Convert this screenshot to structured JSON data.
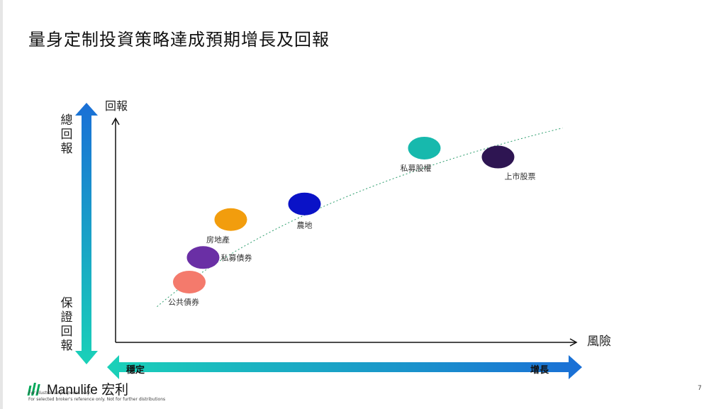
{
  "slide": {
    "title": "量身定制投資策略達成預期增長及回報",
    "page_number": "7"
  },
  "left_scale": {
    "top_label": "總回報",
    "bottom_label": "保證回報"
  },
  "bottom_scale": {
    "left_label": "穩定",
    "right_label": "增長"
  },
  "chart_data": {
    "type": "scatter",
    "title": "",
    "xlabel": "風險",
    "ylabel": "回報",
    "xlim": [
      0,
      100
    ],
    "ylim": [
      0,
      100
    ],
    "grid": false,
    "trendline": {
      "style": "dotted",
      "color": "#2e9e6e",
      "x": [
        9,
        97
      ],
      "y": [
        16,
        96
      ]
    },
    "series": [
      {
        "label": "公共債券",
        "x": 16,
        "y": 27,
        "color": "#f47a6c"
      },
      {
        "label": "私募債券",
        "x": 19,
        "y": 38,
        "color": "#6a2fa5"
      },
      {
        "label": "房地產",
        "x": 25,
        "y": 55,
        "color": "#f29d0d"
      },
      {
        "label": "農地",
        "x": 41,
        "y": 62,
        "color": "#0a12c7"
      },
      {
        "label": "私募股權",
        "x": 67,
        "y": 87,
        "color": "#17b9ad"
      },
      {
        "label": "上市股票",
        "x": 83,
        "y": 83,
        "color": "#2e1552"
      }
    ]
  },
  "footer": {
    "brand": "Manulife 宏利",
    "disclaimer_1": "For illustrative purposes only.",
    "disclaimer_2": "For selected broker's reference only. Not for further distributions"
  },
  "colors": {
    "gradient_top": "#1a6fd6",
    "gradient_bottom": "#1ad1b8",
    "brand_green": "#00a758"
  }
}
